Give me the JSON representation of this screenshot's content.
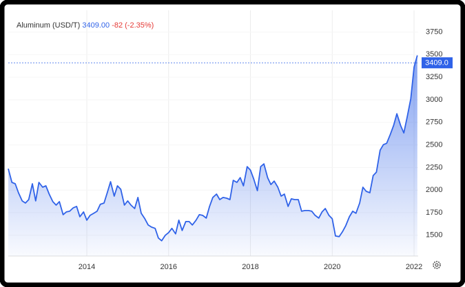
{
  "chart_data": {
    "type": "line",
    "title": "Aluminum (USD/T)",
    "price": "3409.00",
    "change": "-82 (-2.35%)",
    "price_line": {
      "value": 3409,
      "label": "3409.0"
    },
    "x": [
      2012.08,
      2012.17,
      2012.25,
      2012.33,
      2012.42,
      2012.5,
      2012.58,
      2012.67,
      2012.75,
      2012.83,
      2012.92,
      2013.0,
      2013.08,
      2013.17,
      2013.25,
      2013.33,
      2013.42,
      2013.5,
      2013.58,
      2013.67,
      2013.75,
      2013.83,
      2013.92,
      2014.0,
      2014.08,
      2014.17,
      2014.25,
      2014.33,
      2014.42,
      2014.5,
      2014.58,
      2014.67,
      2014.75,
      2014.83,
      2014.92,
      2015.0,
      2015.08,
      2015.17,
      2015.25,
      2015.33,
      2015.42,
      2015.5,
      2015.58,
      2015.67,
      2015.75,
      2015.83,
      2015.92,
      2016.0,
      2016.08,
      2016.17,
      2016.25,
      2016.33,
      2016.42,
      2016.5,
      2016.58,
      2016.67,
      2016.75,
      2016.83,
      2016.92,
      2017.0,
      2017.08,
      2017.17,
      2017.25,
      2017.33,
      2017.42,
      2017.5,
      2017.58,
      2017.67,
      2017.75,
      2017.83,
      2017.92,
      2018.0,
      2018.08,
      2018.17,
      2018.25,
      2018.33,
      2018.42,
      2018.5,
      2018.58,
      2018.67,
      2018.75,
      2018.83,
      2018.92,
      2019.0,
      2019.08,
      2019.17,
      2019.25,
      2019.33,
      2019.42,
      2019.5,
      2019.58,
      2019.67,
      2019.75,
      2019.83,
      2019.92,
      2020.0,
      2020.08,
      2020.17,
      2020.25,
      2020.33,
      2020.42,
      2020.5,
      2020.58,
      2020.67,
      2020.75,
      2020.83,
      2020.92,
      2021.0,
      2021.08,
      2021.17,
      2021.25,
      2021.33,
      2021.42,
      2021.5,
      2021.58,
      2021.67,
      2021.75,
      2021.83,
      2021.92,
      2022.0,
      2022.08
    ],
    "series": [
      {
        "name": "Aluminum",
        "color": "#2f62e8",
        "values": [
          2237,
          2085,
          2070,
          1971,
          1880,
          1857,
          1895,
          2070,
          1880,
          2085,
          2032,
          2047,
          1956,
          1872,
          1834,
          1872,
          1728,
          1758,
          1766,
          1804,
          1819,
          1705,
          1758,
          1667,
          1720,
          1743,
          1766,
          1842,
          1857,
          1971,
          2093,
          1933,
          2047,
          2009,
          1834,
          1880,
          1834,
          1796,
          1918,
          1743,
          1682,
          1614,
          1591,
          1576,
          1470,
          1439,
          1500,
          1530,
          1576,
          1515,
          1667,
          1553,
          1652,
          1652,
          1614,
          1667,
          1728,
          1720,
          1690,
          1819,
          1918,
          1956,
          1895,
          1918,
          1910,
          1895,
          2108,
          2085,
          2138,
          2047,
          2260,
          2222,
          2123,
          1994,
          2260,
          2290,
          2138,
          2062,
          2100,
          2032,
          1933,
          1956,
          1819,
          1903,
          1895,
          1895,
          1766,
          1774,
          1774,
          1766,
          1720,
          1690,
          1758,
          1796,
          1720,
          1682,
          1492,
          1485,
          1538,
          1606,
          1705,
          1766,
          1743,
          1857,
          2032,
          1986,
          1971,
          2161,
          2199,
          2442,
          2503,
          2518,
          2617,
          2716,
          2845,
          2716,
          2632,
          2807,
          3012,
          3362,
          3491
        ]
      }
    ],
    "xlim": [
      2012.08,
      2022.1
    ],
    "ylim": [
      1270,
      3990
    ],
    "xticks": [
      2014,
      2016,
      2018,
      2020,
      2022
    ],
    "yticks": [
      1500,
      1750,
      2000,
      2250,
      2500,
      2750,
      3000,
      3250,
      3500,
      3750
    ],
    "grid": true
  }
}
